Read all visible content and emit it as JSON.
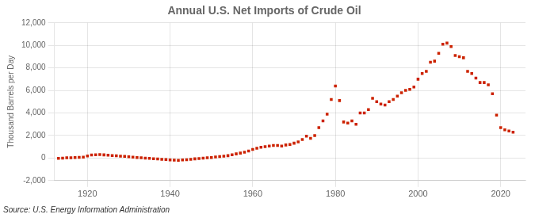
{
  "chart_data": {
    "type": "scatter",
    "title": "Annual U.S. Net Imports of Crude Oil",
    "ylabel": "Thousand Barrels per Day",
    "annotations": [
      "Source: U.S. Energy Information Administration"
    ],
    "color": "#cc2200",
    "marker": "square",
    "grid": true,
    "xlim": [
      1912,
      2026
    ],
    "xticks": [
      1920,
      1940,
      1960,
      1980,
      2000,
      2020
    ],
    "ylim": [
      -2000,
      12000
    ],
    "yticks": [
      {
        "value": -2000,
        "label": "-2,000"
      },
      0,
      {
        "value": 2000,
        "label": "2,000"
      },
      {
        "value": 4000,
        "label": "4,000"
      },
      {
        "value": 6000,
        "label": "6,000"
      },
      {
        "value": 8000,
        "label": "8,000"
      },
      {
        "value": 10000,
        "label": "10,000"
      },
      {
        "value": 12000,
        "label": "12,000"
      }
    ],
    "x": [
      1913,
      1914,
      1915,
      1916,
      1917,
      1918,
      1919,
      1920,
      1921,
      1922,
      1923,
      1924,
      1925,
      1926,
      1927,
      1928,
      1929,
      1930,
      1931,
      1932,
      1933,
      1934,
      1935,
      1936,
      1937,
      1938,
      1939,
      1940,
      1941,
      1942,
      1943,
      1944,
      1945,
      1946,
      1947,
      1948,
      1949,
      1950,
      1951,
      1952,
      1953,
      1954,
      1955,
      1956,
      1957,
      1958,
      1959,
      1960,
      1961,
      1962,
      1963,
      1964,
      1965,
      1966,
      1967,
      1968,
      1969,
      1970,
      1971,
      1972,
      1973,
      1974,
      1975,
      1976,
      1977,
      1978,
      1979,
      1980,
      1981,
      1982,
      1983,
      1984,
      1985,
      1986,
      1987,
      1988,
      1989,
      1990,
      1991,
      1992,
      1993,
      1994,
      1995,
      1996,
      1997,
      1998,
      1999,
      2000,
      2001,
      2002,
      2003,
      2004,
      2005,
      2006,
      2007,
      2008,
      2009,
      2010,
      2011,
      2012,
      2013,
      2014,
      2015,
      2016,
      2017,
      2018,
      2019,
      2020,
      2021,
      2022,
      2023
    ],
    "values": [
      -20,
      -10,
      20,
      30,
      50,
      60,
      80,
      180,
      270,
      290,
      300,
      280,
      250,
      220,
      200,
      170,
      150,
      110,
      80,
      50,
      20,
      -10,
      -30,
      -60,
      -80,
      -110,
      -130,
      -160,
      -190,
      -200,
      -170,
      -150,
      -120,
      -70,
      -40,
      -10,
      20,
      50,
      90,
      130,
      170,
      210,
      290,
      370,
      440,
      520,
      620,
      760,
      870,
      960,
      1010,
      1060,
      1110,
      1120,
      1060,
      1160,
      1210,
      1320,
      1440,
      1650,
      1950,
      1750,
      2000,
      2700,
      3300,
      3900,
      5200,
      6400,
      5100,
      3200,
      3100,
      3300,
      3000,
      4000,
      4000,
      4300,
      5300,
      5000,
      4800,
      4700,
      5000,
      5200,
      5500,
      5800,
      6000,
      6100,
      6300,
      7000,
      7500,
      7700,
      8500,
      8600,
      9300,
      10100,
      10200,
      9900,
      9100,
      9000,
      8900,
      7700,
      7500,
      7100,
      6700,
      6700,
      6500,
      5700,
      3800,
      2700,
      2500,
      2400,
      2300
    ]
  }
}
